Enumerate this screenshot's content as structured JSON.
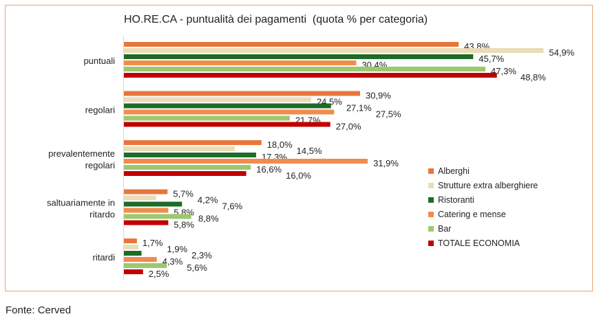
{
  "chart_data": {
    "type": "bar",
    "orientation": "horizontal",
    "title": "HO.RE.CA - puntualità dei pagamenti  (quota % per categoria)",
    "categories": [
      [
        "puntuali"
      ],
      [
        "regolari"
      ],
      [
        "prevalentemente",
        "regolari"
      ],
      [
        "saltuariamente in",
        "ritardo"
      ],
      [
        "ritardi"
      ]
    ],
    "series": [
      {
        "name": "Alberghi",
        "color": "#e8763a",
        "values": [
          43.8,
          30.9,
          18.0,
          5.7,
          1.7
        ],
        "labels": [
          "43,8%",
          "30,9%",
          "18,0%",
          "5,7%",
          "1,7%"
        ]
      },
      {
        "name": "Strutture extra alberghiere",
        "color": "#ebdcb8",
        "values": [
          54.9,
          24.5,
          14.5,
          4.2,
          1.9
        ],
        "labels": [
          "54,9%",
          "24,5%",
          "14,5%",
          "4,2%",
          "1,9%"
        ]
      },
      {
        "name": "Ristoranti",
        "color": "#1e6b28",
        "values": [
          45.7,
          27.1,
          17.3,
          7.6,
          2.3
        ],
        "labels": [
          "45,7%",
          "27,1%",
          "17,3%",
          "7,6%",
          "2,3%"
        ]
      },
      {
        "name": "Catering e mense",
        "color": "#f28c4c",
        "values": [
          30.4,
          27.5,
          31.9,
          5.8,
          4.3
        ],
        "labels": [
          "30,4%",
          "27,5%",
          "31,9%",
          "5,8%",
          "4,3%"
        ]
      },
      {
        "name": "Bar",
        "color": "#9cc96e",
        "values": [
          47.3,
          21.7,
          16.6,
          8.8,
          5.6
        ],
        "labels": [
          "47,3%",
          "21,7%",
          "16,6%",
          "8,8%",
          "5,6%"
        ]
      },
      {
        "name": "TOTALE ECONOMIA",
        "color": "#c00000",
        "values": [
          48.8,
          27.0,
          16.0,
          5.8,
          2.5
        ],
        "labels": [
          "48,8%",
          "27,0%",
          "16,0%",
          "5,8%",
          "2,5%"
        ]
      }
    ],
    "xlim": [
      0,
      60
    ],
    "grid": false,
    "legend": "right"
  },
  "source": "Fonte: Cerved"
}
